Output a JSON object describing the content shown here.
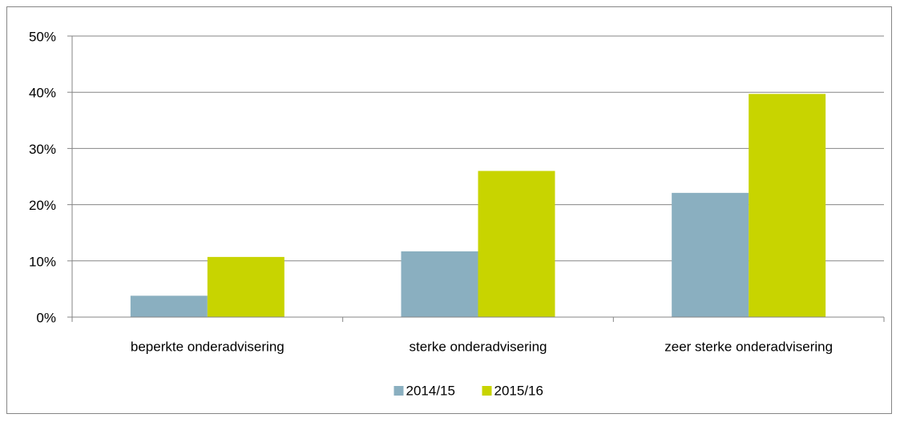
{
  "chart_data": {
    "type": "bar",
    "categories": [
      "beperkte onderadvisering",
      "sterke onderadvisering",
      "zeer sterke onderadvisering"
    ],
    "series": [
      {
        "name": "2014/15",
        "color": "#8aafc0",
        "values": [
          3.8,
          11.7,
          22.1
        ]
      },
      {
        "name": "2015/16",
        "color": "#c8d400",
        "values": [
          10.7,
          26,
          39.7
        ]
      }
    ],
    "ylim": [
      0,
      50
    ],
    "yticks": [
      {
        "value": 0,
        "label": "0%"
      },
      {
        "value": 10,
        "label": "10%"
      },
      {
        "value": 20,
        "label": "20%"
      },
      {
        "value": 30,
        "label": "30%"
      },
      {
        "value": 40,
        "label": "40%"
      },
      {
        "value": 50,
        "label": "50%"
      }
    ],
    "grid": true,
    "legend": "bottom"
  }
}
